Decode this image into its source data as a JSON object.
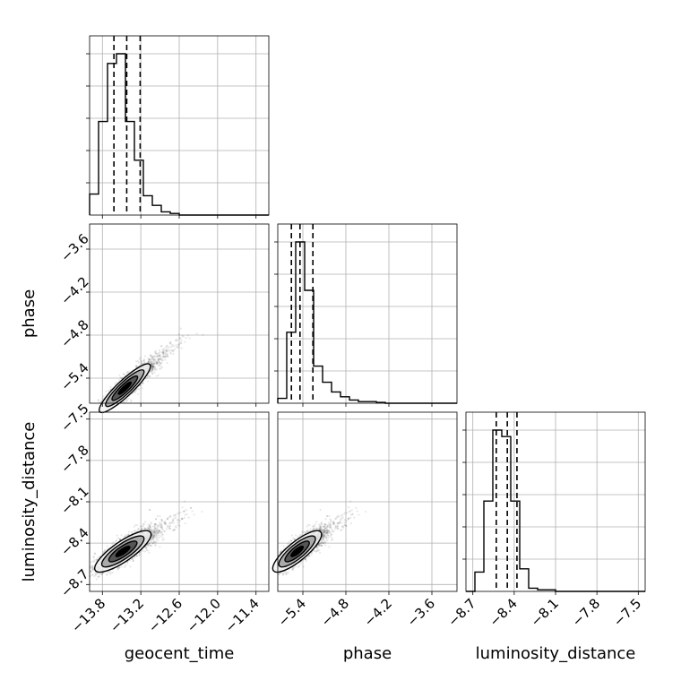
{
  "chart_data": {
    "type": "corner",
    "parameters": [
      "geocent_time",
      "phase",
      "luminosity_distance"
    ],
    "ranges": {
      "geocent_time": [
        -14.0,
        -11.2
      ],
      "phase": [
        -5.75,
        -3.25
      ],
      "luminosity_distance": [
        -8.75,
        -7.45
      ]
    },
    "ticks": {
      "geocent_time": [
        -13.8,
        -13.2,
        -12.6,
        -12.0,
        -11.4
      ],
      "phase": [
        -5.4,
        -4.8,
        -4.2,
        -3.6
      ],
      "luminosity_distance": [
        -8.7,
        -8.4,
        -8.1,
        -7.8,
        -7.5
      ]
    },
    "tick_labels": {
      "geocent_time": [
        "−13.8",
        "−13.2",
        "−12.6",
        "−12.0",
        "−11.4"
      ],
      "phase": [
        "−5.4",
        "−4.8",
        "−4.2",
        "−3.6"
      ],
      "luminosity_distance": [
        "−8.7",
        "−8.4",
        "−8.1",
        "−7.8",
        "−7.5"
      ]
    },
    "quantiles": {
      "geocent_time": [
        -13.62,
        -13.42,
        -13.21
      ],
      "phase": [
        -5.56,
        -5.44,
        -5.26
      ],
      "luminosity_distance": [
        -8.53,
        -8.45,
        -8.38
      ]
    },
    "histograms": {
      "geocent_time": {
        "edges": [
          -14.0,
          -13.86,
          -13.72,
          -13.58,
          -13.44,
          -13.3,
          -13.16,
          -13.02,
          -12.88,
          -12.74,
          -12.6,
          -12.46,
          -12.32,
          -12.18,
          -12.04,
          -11.9,
          -11.76,
          -11.62,
          -11.48,
          -11.34,
          -11.2
        ],
        "counts": [
          0.13,
          0.58,
          0.94,
          1.0,
          0.58,
          0.34,
          0.12,
          0.06,
          0.02,
          0.01,
          0.0,
          0.0,
          0.0,
          0.0,
          0.0,
          0.0,
          0.0,
          0.0,
          0.0,
          0.0
        ]
      },
      "phase": {
        "edges": [
          -5.75,
          -5.625,
          -5.5,
          -5.375,
          -5.25,
          -5.125,
          -5.0,
          -4.875,
          -4.75,
          -4.625,
          -4.5,
          -4.375,
          -4.25,
          -4.125,
          -4.0,
          -3.875,
          -3.75,
          -3.625,
          -3.5,
          -3.375,
          -3.25
        ],
        "counts": [
          0.03,
          0.44,
          1.0,
          0.7,
          0.23,
          0.13,
          0.07,
          0.04,
          0.02,
          0.01,
          0.01,
          0.005,
          0.0,
          0.0,
          0.0,
          0.0,
          0.0,
          0.0,
          0.0,
          0.0
        ]
      },
      "luminosity_distance": {
        "edges": [
          -8.75,
          -8.685,
          -8.62,
          -8.555,
          -8.49,
          -8.425,
          -8.36,
          -8.295,
          -8.23,
          -8.165,
          -8.1,
          -8.035,
          -7.97,
          -7.905,
          -7.84,
          -7.775,
          -7.71,
          -7.645,
          -7.58,
          -7.515,
          -7.45
        ],
        "counts": [
          0.0,
          0.12,
          0.56,
          1.0,
          0.96,
          0.56,
          0.14,
          0.02,
          0.01,
          0.01,
          0.0,
          0.0,
          0.0,
          0.0,
          0.0,
          0.0,
          0.0,
          0.0,
          0.0,
          0.0
        ]
      }
    },
    "joint": {
      "geocent_time|phase": {
        "center": [
          -13.45,
          -5.54
        ],
        "spread": [
          0.2,
          0.17
        ],
        "correlation": 0.9,
        "contour_sigmas": [
          0.5,
          1.0,
          1.5,
          2.0
        ]
      },
      "geocent_time|luminosity_distance": {
        "center": [
          -13.48,
          -8.46
        ],
        "spread": [
          0.22,
          0.075
        ],
        "correlation": 0.82,
        "contour_sigmas": [
          0.5,
          1.0,
          1.5,
          2.0
        ]
      },
      "phase|luminosity_distance": {
        "center": [
          -5.48,
          -8.46
        ],
        "spread": [
          0.17,
          0.075
        ],
        "correlation": 0.82,
        "contour_sigmas": [
          0.5,
          1.0,
          1.5,
          2.0
        ]
      }
    },
    "grid": true,
    "colors": {
      "ink": "#000000",
      "grid": "#b0b0b0",
      "points": "#000000"
    }
  }
}
